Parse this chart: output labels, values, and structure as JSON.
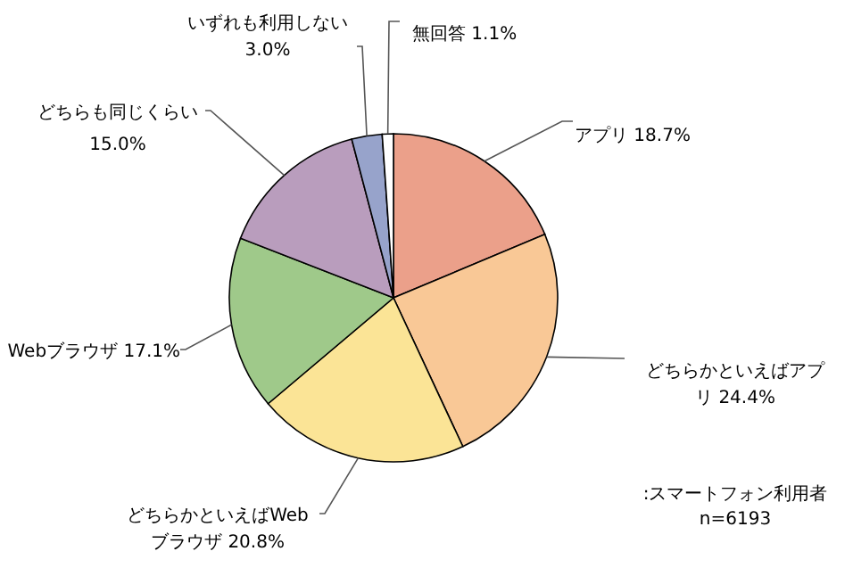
{
  "chart_data": {
    "type": "pie",
    "categories": [
      "アプリ",
      "どちらかといえばアプリ",
      "どちらかといえばWebブラウザ",
      "Webブラウザ",
      "どちらも同じくらい",
      "いずれも利用しない",
      "無回答"
    ],
    "values": [
      18.7,
      24.4,
      20.8,
      17.1,
      15.0,
      3.0,
      1.1
    ],
    "value_labels": [
      "18.7%",
      "24.4%",
      "20.8%",
      "17.1%",
      "15.0%",
      "3.0%",
      "1.1%"
    ],
    "colors": [
      "#eba08a",
      "#f9c896",
      "#fbe496",
      "#9fc98a",
      "#b99dbd",
      "#97a3cb",
      "#ffffff"
    ],
    "annotations": [
      ":スマートフォン利用者",
      "n=6193"
    ]
  }
}
